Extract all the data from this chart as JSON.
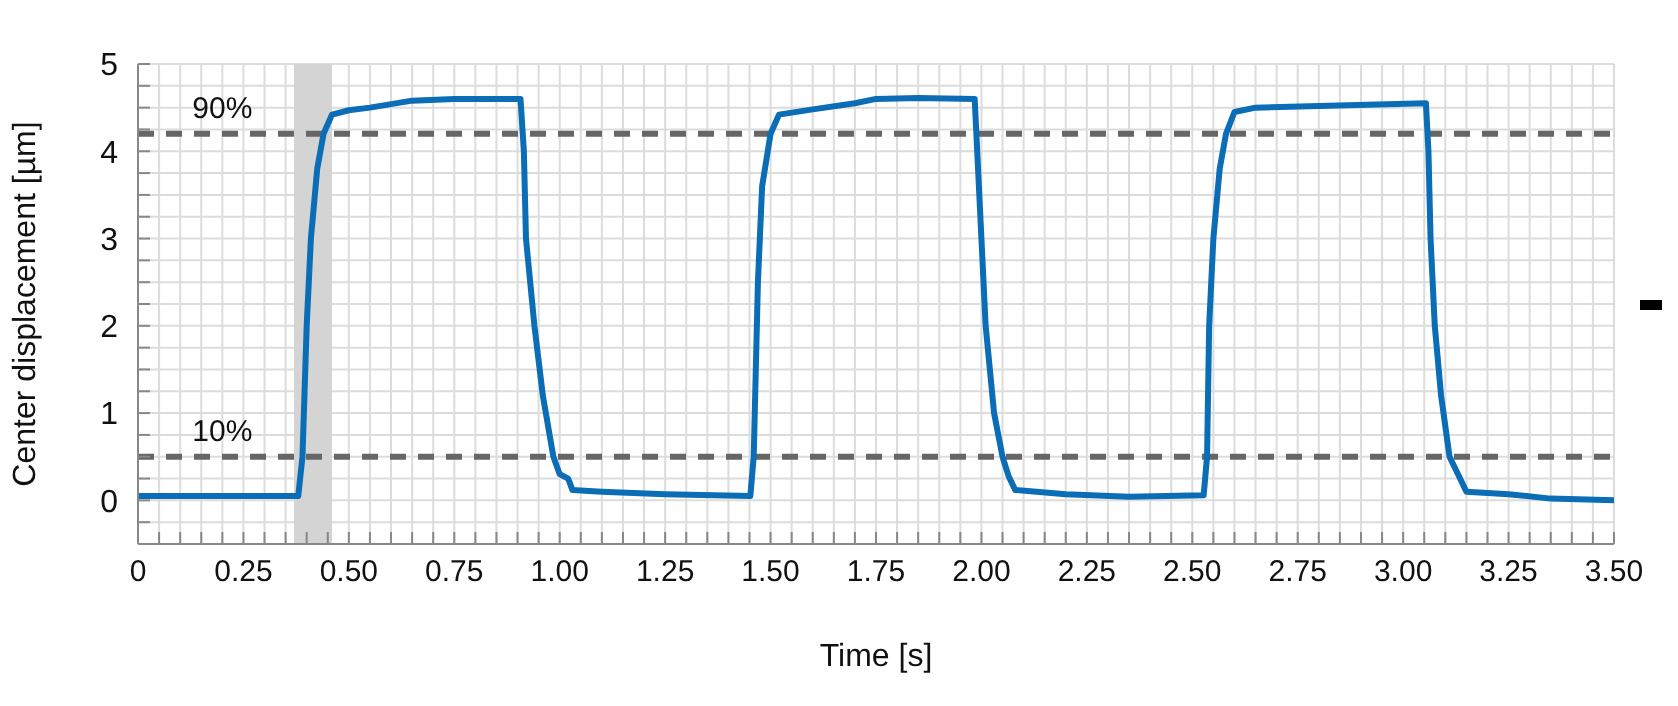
{
  "chart_data": {
    "type": "line",
    "xlabel": "Time [s]",
    "ylabel": "Center displacement [µm]",
    "x": [
      0,
      0.2,
      0.38,
      0.39,
      0.4,
      0.41,
      0.425,
      0.44,
      0.46,
      0.5,
      0.55,
      0.65,
      0.75,
      0.907,
      0.915,
      0.92,
      0.94,
      0.96,
      0.985,
      1.0,
      1.02,
      1.03,
      1.1,
      1.25,
      1.452,
      1.46,
      1.47,
      1.48,
      1.5,
      1.52,
      1.6,
      1.7,
      1.75,
      1.85,
      1.984,
      1.99,
      2.0,
      2.01,
      2.03,
      2.05,
      2.065,
      2.08,
      2.2,
      2.35,
      2.527,
      2.535,
      2.54,
      2.55,
      2.565,
      2.58,
      2.6,
      2.65,
      2.8,
      3.054,
      3.06,
      3.065,
      3.075,
      3.09,
      3.11,
      3.135,
      3.15,
      3.25,
      3.35,
      3.5
    ],
    "series": [
      {
        "color": "#0a6db5",
        "values": [
          0.05,
          0.05,
          0.05,
          0.5,
          2.0,
          3.0,
          3.8,
          4.2,
          4.42,
          4.47,
          4.5,
          4.58,
          4.6,
          4.6,
          4.0,
          3.0,
          2.0,
          1.2,
          0.5,
          0.3,
          0.25,
          0.12,
          0.1,
          0.07,
          0.05,
          0.5,
          2.5,
          3.6,
          4.2,
          4.42,
          4.48,
          4.55,
          4.6,
          4.61,
          4.6,
          4.0,
          3.0,
          2.0,
          1.0,
          0.5,
          0.27,
          0.12,
          0.07,
          0.04,
          0.06,
          0.5,
          2.0,
          3.0,
          3.8,
          4.2,
          4.45,
          4.5,
          4.52,
          4.55,
          4.0,
          3.0,
          2.0,
          1.2,
          0.5,
          0.25,
          0.1,
          0.07,
          0.02,
          0.0
        ]
      }
    ],
    "xlim": [
      0,
      3.5
    ],
    "ylim": [
      -0.5,
      5
    ],
    "xticks": [
      0,
      {
        "value": 0.05,
        "label": null
      },
      {
        "value": 0.1,
        "label": null
      },
      {
        "value": 0.15,
        "label": null
      },
      {
        "value": 0.2,
        "label": null
      },
      {
        "value": 0.25,
        "label": "0.25"
      },
      {
        "value": 0.3,
        "label": null
      },
      {
        "value": 0.35,
        "label": null
      },
      {
        "value": 0.4,
        "label": null
      },
      {
        "value": 0.45,
        "label": null
      },
      {
        "value": 0.5,
        "label": "0.50"
      },
      {
        "value": 0.55,
        "label": null
      },
      {
        "value": 0.6,
        "label": null
      },
      {
        "value": 0.65,
        "label": null
      },
      {
        "value": 0.7,
        "label": null
      },
      {
        "value": 0.75,
        "label": "0.75"
      },
      {
        "value": 0.8,
        "label": null
      },
      {
        "value": 0.85,
        "label": null
      },
      {
        "value": 0.9,
        "label": null
      },
      {
        "value": 0.95,
        "label": null
      },
      {
        "value": 1,
        "label": "1.00"
      },
      {
        "value": 1.05,
        "label": null
      },
      {
        "value": 1.1,
        "label": null
      },
      {
        "value": 1.15,
        "label": null
      },
      {
        "value": 1.2,
        "label": null
      },
      {
        "value": 1.25,
        "label": "1.25"
      },
      {
        "value": 1.3,
        "label": null
      },
      {
        "value": 1.35,
        "label": null
      },
      {
        "value": 1.4,
        "label": null
      },
      {
        "value": 1.45,
        "label": null
      },
      {
        "value": 1.5,
        "label": "1.50"
      },
      {
        "value": 1.55,
        "label": null
      },
      {
        "value": 1.6,
        "label": null
      },
      {
        "value": 1.65,
        "label": null
      },
      {
        "value": 1.7,
        "label": null
      },
      {
        "value": 1.75,
        "label": "1.75"
      },
      {
        "value": 1.8,
        "label": null
      },
      {
        "value": 1.85,
        "label": null
      },
      {
        "value": 1.9,
        "label": null
      },
      {
        "value": 1.95,
        "label": null
      },
      {
        "value": 2,
        "label": "2.00"
      },
      {
        "value": 2.05,
        "label": null
      },
      {
        "value": 2.1,
        "label": null
      },
      {
        "value": 2.15,
        "label": null
      },
      {
        "value": 2.2,
        "label": null
      },
      {
        "value": 2.25,
        "label": "2.25"
      },
      {
        "value": 2.3,
        "label": null
      },
      {
        "value": 2.35,
        "label": null
      },
      {
        "value": 2.4,
        "label": null
      },
      {
        "value": 2.45,
        "label": null
      },
      {
        "value": 2.5,
        "label": "2.50"
      },
      {
        "value": 2.55,
        "label": null
      },
      {
        "value": 2.6,
        "label": null
      },
      {
        "value": 2.65,
        "label": null
      },
      {
        "value": 2.7,
        "label": null
      },
      {
        "value": 2.75,
        "label": "2.75"
      },
      {
        "value": 2.8,
        "label": null
      },
      {
        "value": 2.85,
        "label": null
      },
      {
        "value": 2.9,
        "label": null
      },
      {
        "value": 2.95,
        "label": null
      },
      {
        "value": 3,
        "label": "3.00"
      },
      {
        "value": 3.05,
        "label": null
      },
      {
        "value": 3.1,
        "label": null
      },
      {
        "value": 3.15,
        "label": null
      },
      {
        "value": 3.2,
        "label": null
      },
      {
        "value": 3.25,
        "label": "3.25"
      },
      {
        "value": 3.3,
        "label": null
      },
      {
        "value": 3.35,
        "label": null
      },
      {
        "value": 3.4,
        "label": null
      },
      {
        "value": 3.45,
        "label": null
      },
      {
        "value": 3.5,
        "label": "3.50"
      }
    ],
    "yticks": [
      {
        "value": -0.5,
        "label": null
      },
      {
        "value": -0.25,
        "label": null
      },
      0,
      {
        "value": 0.25,
        "label": null
      },
      {
        "value": 0.5,
        "label": null
      },
      {
        "value": 0.75,
        "label": null
      },
      1,
      {
        "value": 1.25,
        "label": null
      },
      {
        "value": 1.5,
        "label": null
      },
      {
        "value": 1.75,
        "label": null
      },
      2,
      {
        "value": 2.25,
        "label": null
      },
      {
        "value": 2.5,
        "label": null
      },
      {
        "value": 2.75,
        "label": null
      },
      3,
      {
        "value": 3.25,
        "label": null
      },
      {
        "value": 3.5,
        "label": null
      },
      {
        "value": 3.75,
        "label": null
      },
      4,
      {
        "value": 4.25,
        "label": null
      },
      {
        "value": 4.5,
        "label": null
      },
      {
        "value": 4.75,
        "label": null
      },
      5
    ],
    "ref_lines": [
      {
        "axis": "y",
        "value": 4.2,
        "color": "#666666",
        "line_style": "dashed"
      },
      {
        "axis": "y",
        "value": 0.5,
        "color": "#666666",
        "line_style": "dashed"
      }
    ],
    "annotations": [
      {
        "text": "90%",
        "x": 0.2,
        "y": 4.2
      },
      {
        "text": "10%",
        "x": 0.2,
        "y": 0.5
      }
    ],
    "bands": [
      {
        "axis": "x",
        "from": 0.37,
        "to": 0.46,
        "color": "#d4d4d4"
      }
    ],
    "grid": true,
    "marker": "none",
    "line_style": "solid"
  }
}
